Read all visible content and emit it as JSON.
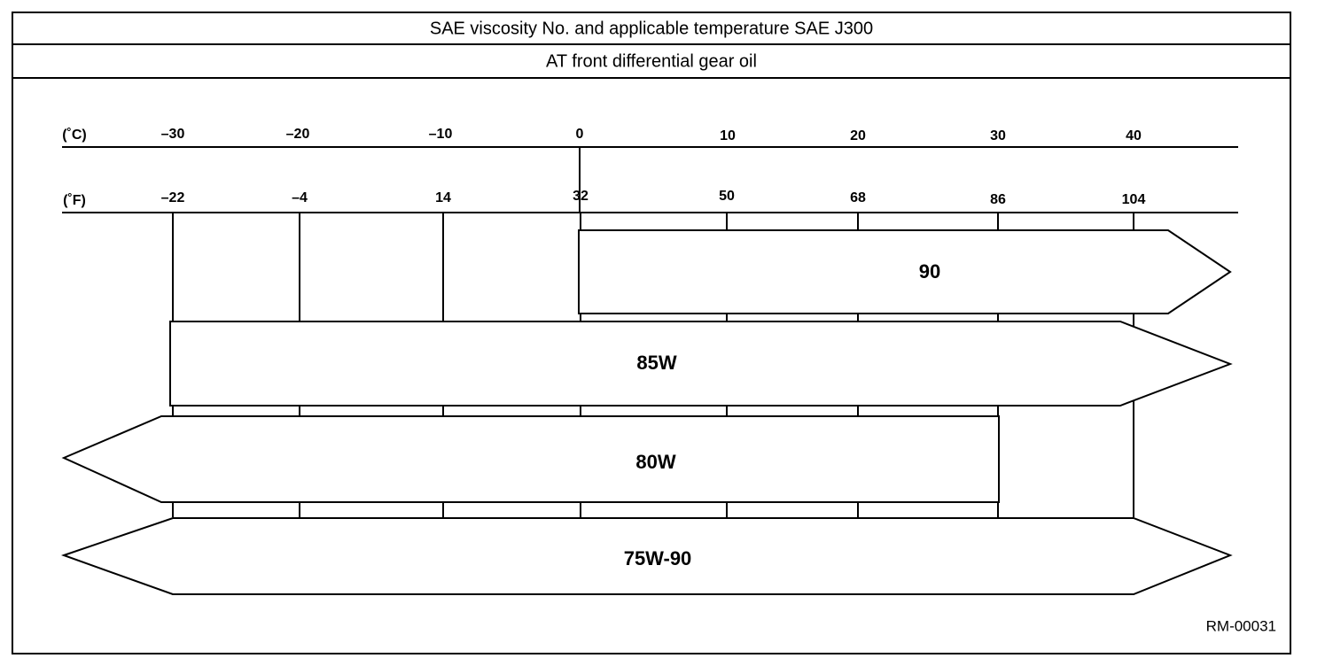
{
  "header": {
    "title": "SAE viscosity No. and applicable temperature SAE J300",
    "subtitle": "AT front differential gear oil"
  },
  "scale": {
    "celsius_label": "(˚C)",
    "celsius": [
      "–30",
      "–20",
      "–10",
      "0",
      "10",
      "20",
      "30",
      "40"
    ],
    "fahrenheit_label": "(˚F)",
    "fahrenheit": [
      "–22",
      "–4",
      "14",
      "32",
      "50",
      "68",
      "86",
      "104"
    ]
  },
  "grades": [
    "90",
    "85W",
    "80W",
    "75W-90"
  ],
  "code": "RM-00031"
}
